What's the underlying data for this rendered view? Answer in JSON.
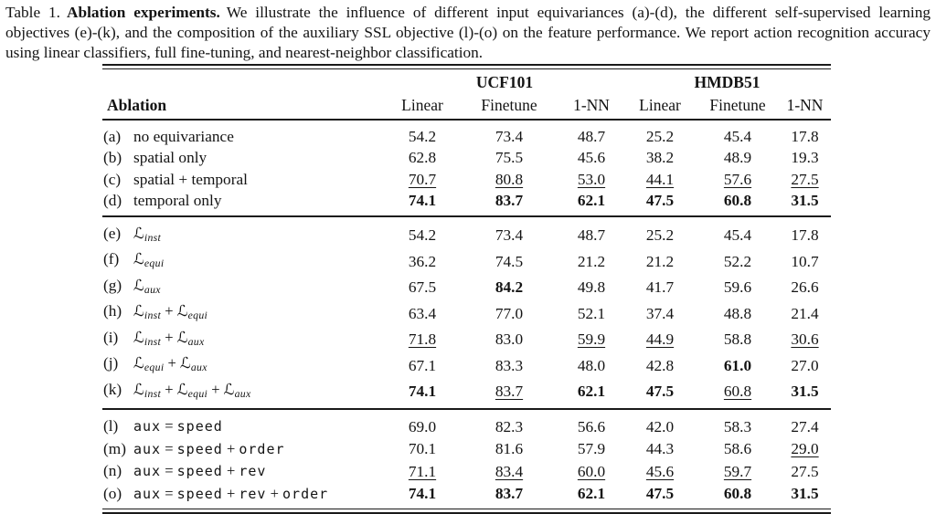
{
  "caption": {
    "label": "Table 1.",
    "title": "Ablation experiments.",
    "body": "We illustrate the influence of different input equivariances (a)-(d), the different self-supervised learning objectives (e)-(k), and the composition of the auxiliary SSL objective (l)-(o) on the feature performance. We report action recognition accuracy using linear classifiers, full fine-tuning, and nearest-neighbor classification."
  },
  "colors": {
    "background": "#ffffff",
    "text": "#141414",
    "rule": "#1a1a1a"
  },
  "table": {
    "row_header": "Ablation",
    "col_group_headers": [
      "UCF101",
      "HMDB51"
    ],
    "sub_headers": [
      "Linear",
      "Finetune",
      "1-NN",
      "Linear",
      "Finetune",
      "1-NN"
    ],
    "style_legend": {
      "p": "plain",
      "u": "underlined (second best)",
      "b": "bold (best)"
    },
    "sections": [
      {
        "name": "input-equivariances",
        "rows": [
          {
            "id": "(a)",
            "label_parts": [
              {
                "s": "txt",
                "t": "no equivariance"
              }
            ],
            "values": [
              "54.2",
              "73.4",
              "48.7",
              "25.2",
              "45.4",
              "17.8"
            ],
            "styles": [
              "p",
              "p",
              "p",
              "p",
              "p",
              "p"
            ]
          },
          {
            "id": "(b)",
            "label_parts": [
              {
                "s": "txt",
                "t": "spatial only"
              }
            ],
            "values": [
              "62.8",
              "75.5",
              "45.6",
              "38.2",
              "48.9",
              "19.3"
            ],
            "styles": [
              "p",
              "p",
              "p",
              "p",
              "p",
              "p"
            ]
          },
          {
            "id": "(c)",
            "label_parts": [
              {
                "s": "txt",
                "t": "spatial + temporal"
              }
            ],
            "values": [
              "70.7",
              "80.8",
              "53.0",
              "44.1",
              "57.6",
              "27.5"
            ],
            "styles": [
              "u",
              "u",
              "u",
              "u",
              "u",
              "u"
            ]
          },
          {
            "id": "(d)",
            "label_parts": [
              {
                "s": "txt",
                "t": "temporal only"
              }
            ],
            "values": [
              "74.1",
              "83.7",
              "62.1",
              "47.5",
              "60.8",
              "31.5"
            ],
            "styles": [
              "b",
              "b",
              "b",
              "b",
              "b",
              "b"
            ]
          }
        ]
      },
      {
        "name": "ssl-objectives",
        "rows": [
          {
            "id": "(e)",
            "label_parts": [
              {
                "s": "scr",
                "t": "ℒ"
              },
              {
                "s": "sub",
                "t": "inst"
              }
            ],
            "values": [
              "54.2",
              "73.4",
              "48.7",
              "25.2",
              "45.4",
              "17.8"
            ],
            "styles": [
              "p",
              "p",
              "p",
              "p",
              "p",
              "p"
            ]
          },
          {
            "id": "(f)",
            "label_parts": [
              {
                "s": "scr",
                "t": "ℒ"
              },
              {
                "s": "sub",
                "t": "equi"
              }
            ],
            "values": [
              "36.2",
              "74.5",
              "21.2",
              "21.2",
              "52.2",
              "10.7"
            ],
            "styles": [
              "p",
              "p",
              "p",
              "p",
              "p",
              "p"
            ]
          },
          {
            "id": "(g)",
            "label_parts": [
              {
                "s": "scr",
                "t": "ℒ"
              },
              {
                "s": "sub",
                "t": "aux"
              }
            ],
            "values": [
              "67.5",
              "84.2",
              "49.8",
              "41.7",
              "59.6",
              "26.6"
            ],
            "styles": [
              "p",
              "b",
              "p",
              "p",
              "p",
              "p"
            ]
          },
          {
            "id": "(h)",
            "label_parts": [
              {
                "s": "scr",
                "t": "ℒ"
              },
              {
                "s": "sub",
                "t": "inst"
              },
              {
                "s": "op",
                "t": " + "
              },
              {
                "s": "scr",
                "t": "ℒ"
              },
              {
                "s": "sub",
                "t": "equi"
              }
            ],
            "values": [
              "63.4",
              "77.0",
              "52.1",
              "37.4",
              "48.8",
              "21.4"
            ],
            "styles": [
              "p",
              "p",
              "p",
              "p",
              "p",
              "p"
            ]
          },
          {
            "id": "(i)",
            "label_parts": [
              {
                "s": "scr",
                "t": "ℒ"
              },
              {
                "s": "sub",
                "t": "inst"
              },
              {
                "s": "op",
                "t": " + "
              },
              {
                "s": "scr",
                "t": "ℒ"
              },
              {
                "s": "sub",
                "t": "aux"
              }
            ],
            "values": [
              "71.8",
              "83.0",
              "59.9",
              "44.9",
              "58.8",
              "30.6"
            ],
            "styles": [
              "u",
              "p",
              "u",
              "u",
              "p",
              "u"
            ]
          },
          {
            "id": "(j)",
            "label_parts": [
              {
                "s": "scr",
                "t": "ℒ"
              },
              {
                "s": "sub",
                "t": "equi"
              },
              {
                "s": "op",
                "t": " + "
              },
              {
                "s": "scr",
                "t": "ℒ"
              },
              {
                "s": "sub",
                "t": "aux"
              }
            ],
            "values": [
              "67.1",
              "83.3",
              "48.0",
              "42.8",
              "61.0",
              "27.0"
            ],
            "styles": [
              "p",
              "p",
              "p",
              "p",
              "b",
              "p"
            ]
          },
          {
            "id": "(k)",
            "label_parts": [
              {
                "s": "scr",
                "t": "ℒ"
              },
              {
                "s": "sub",
                "t": "inst"
              },
              {
                "s": "op",
                "t": " + "
              },
              {
                "s": "scr",
                "t": "ℒ"
              },
              {
                "s": "sub",
                "t": "equi"
              },
              {
                "s": "op",
                "t": " + "
              },
              {
                "s": "scr",
                "t": "ℒ"
              },
              {
                "s": "sub",
                "t": "aux"
              }
            ],
            "values": [
              "74.1",
              "83.7",
              "62.1",
              "47.5",
              "60.8",
              "31.5"
            ],
            "styles": [
              "b",
              "u",
              "b",
              "b",
              "u",
              "b"
            ]
          }
        ]
      },
      {
        "name": "auxiliary-composition",
        "rows": [
          {
            "id": "(l)",
            "label_parts": [
              {
                "s": "mono",
                "t": "aux"
              },
              {
                "s": "op",
                "t": " = "
              },
              {
                "s": "mono",
                "t": "speed"
              }
            ],
            "values": [
              "69.0",
              "82.3",
              "56.6",
              "42.0",
              "58.3",
              "27.4"
            ],
            "styles": [
              "p",
              "p",
              "p",
              "p",
              "p",
              "p"
            ]
          },
          {
            "id": "(m)",
            "label_parts": [
              {
                "s": "mono",
                "t": "aux"
              },
              {
                "s": "op",
                "t": " = "
              },
              {
                "s": "mono",
                "t": "speed"
              },
              {
                "s": "op",
                "t": " + "
              },
              {
                "s": "mono",
                "t": "order"
              }
            ],
            "values": [
              "70.1",
              "81.6",
              "57.9",
              "44.3",
              "58.6",
              "29.0"
            ],
            "styles": [
              "p",
              "p",
              "p",
              "p",
              "p",
              "u"
            ]
          },
          {
            "id": "(n)",
            "label_parts": [
              {
                "s": "mono",
                "t": "aux"
              },
              {
                "s": "op",
                "t": " = "
              },
              {
                "s": "mono",
                "t": "speed"
              },
              {
                "s": "op",
                "t": " + "
              },
              {
                "s": "mono",
                "t": "rev"
              }
            ],
            "values": [
              "71.1",
              "83.4",
              "60.0",
              "45.6",
              "59.7",
              "27.5"
            ],
            "styles": [
              "u",
              "u",
              "u",
              "u",
              "u",
              "p"
            ]
          },
          {
            "id": "(o)",
            "label_parts": [
              {
                "s": "mono",
                "t": "aux"
              },
              {
                "s": "op",
                "t": " = "
              },
              {
                "s": "mono",
                "t": "speed"
              },
              {
                "s": "op",
                "t": " + "
              },
              {
                "s": "mono",
                "t": "rev"
              },
              {
                "s": "op",
                "t": " + "
              },
              {
                "s": "mono",
                "t": "order"
              }
            ],
            "values": [
              "74.1",
              "83.7",
              "62.1",
              "47.5",
              "60.8",
              "31.5"
            ],
            "styles": [
              "b",
              "b",
              "b",
              "b",
              "b",
              "b"
            ]
          }
        ]
      }
    ]
  }
}
